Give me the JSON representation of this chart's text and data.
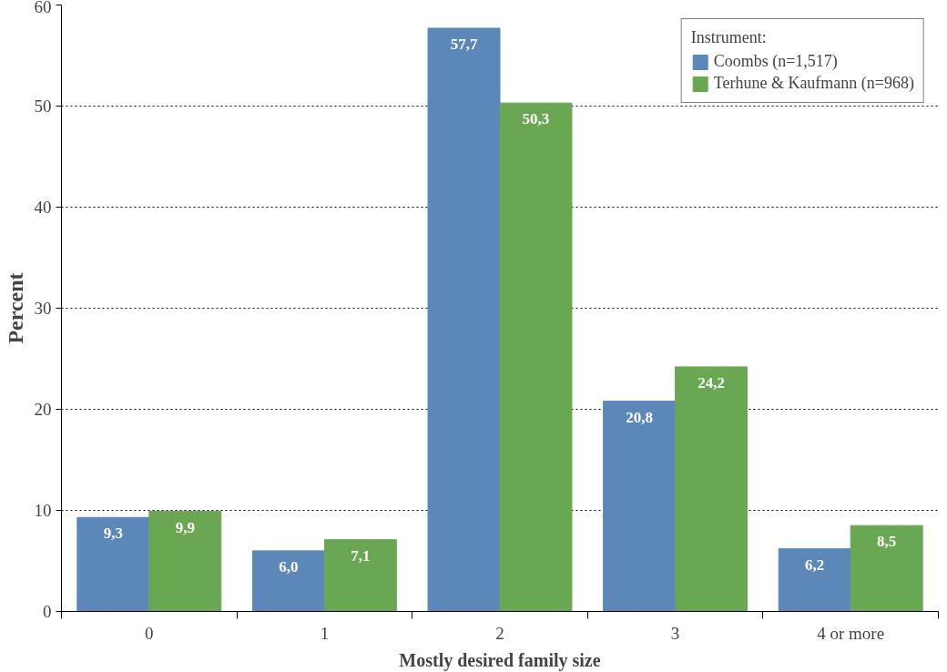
{
  "chart_data": {
    "type": "bar",
    "xlabel": "Mostly desired family size",
    "ylabel": "Percent",
    "legend_title": "Instrument:",
    "categories": [
      "0",
      "1",
      "2",
      "3",
      "4 or more"
    ],
    "series": [
      {
        "name": "Coombs (n=1,517)",
        "color": "#5b88b9",
        "values": [
          9.3,
          6.0,
          57.7,
          20.8,
          6.2
        ],
        "value_labels": [
          "9,3",
          "6,0",
          "57,7",
          "20,8",
          "6,2"
        ]
      },
      {
        "name": "Terhune & Kaufmann (n=968)",
        "color": "#6aa753",
        "values": [
          9.9,
          7.1,
          50.3,
          24.2,
          8.5
        ],
        "value_labels": [
          "9,9",
          "7,1",
          "50,3",
          "24,2",
          "8,5"
        ]
      }
    ],
    "ylim": [
      0,
      60
    ],
    "yticks": [
      0,
      10,
      20,
      30,
      40,
      50,
      60
    ],
    "grid": "y",
    "legend": "top right"
  }
}
